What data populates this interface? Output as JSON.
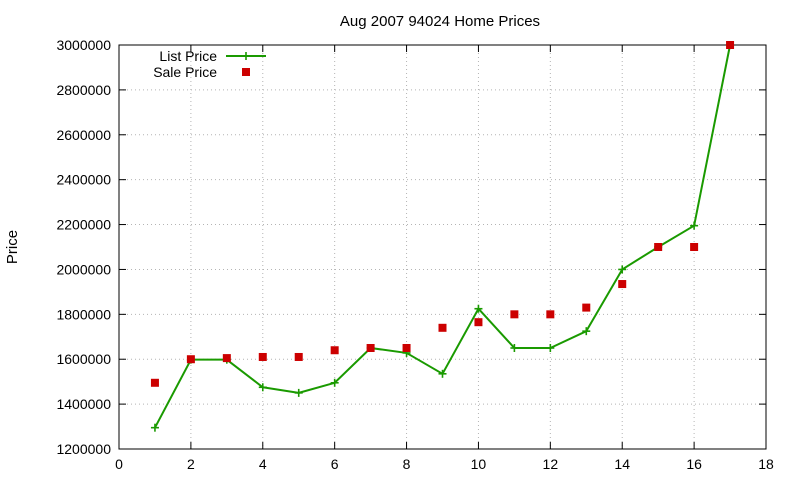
{
  "chart_data": {
    "type": "line",
    "title": "Aug 2007 94024 Home Prices",
    "xlabel": "",
    "ylabel": "Price",
    "xlim": [
      0,
      18
    ],
    "ylim": [
      1200000,
      3000000
    ],
    "x_ticks": [
      0,
      2,
      4,
      6,
      8,
      10,
      12,
      14,
      16,
      18
    ],
    "y_ticks": [
      1200000,
      1400000,
      1600000,
      1800000,
      2000000,
      2200000,
      2400000,
      2600000,
      2800000,
      3000000
    ],
    "grid": true,
    "legend_position": "top-left",
    "series": [
      {
        "name": "List Price",
        "style": "linespoints",
        "marker": "plus",
        "color": "#1a9a00",
        "x": [
          1,
          2,
          3,
          4,
          5,
          6,
          7,
          8,
          9,
          10,
          11,
          12,
          13,
          14,
          15,
          16,
          17
        ],
        "y": [
          1295000,
          1598000,
          1598000,
          1475000,
          1450000,
          1495000,
          1650000,
          1628000,
          1535000,
          1825000,
          1650000,
          1650000,
          1725000,
          2000000,
          2100000,
          2195000,
          3000000
        ]
      },
      {
        "name": "Sale Price",
        "style": "points",
        "marker": "square",
        "color": "#cc0000",
        "x": [
          1,
          2,
          3,
          4,
          5,
          6,
          7,
          8,
          9,
          10,
          11,
          12,
          13,
          14,
          15,
          16,
          17
        ],
        "y": [
          1495000,
          1600000,
          1605000,
          1610000,
          1610000,
          1640000,
          1650000,
          1650000,
          1740000,
          1765000,
          1800000,
          1800000,
          1830000,
          1935000,
          2100000,
          2100000,
          3000000
        ]
      }
    ]
  }
}
